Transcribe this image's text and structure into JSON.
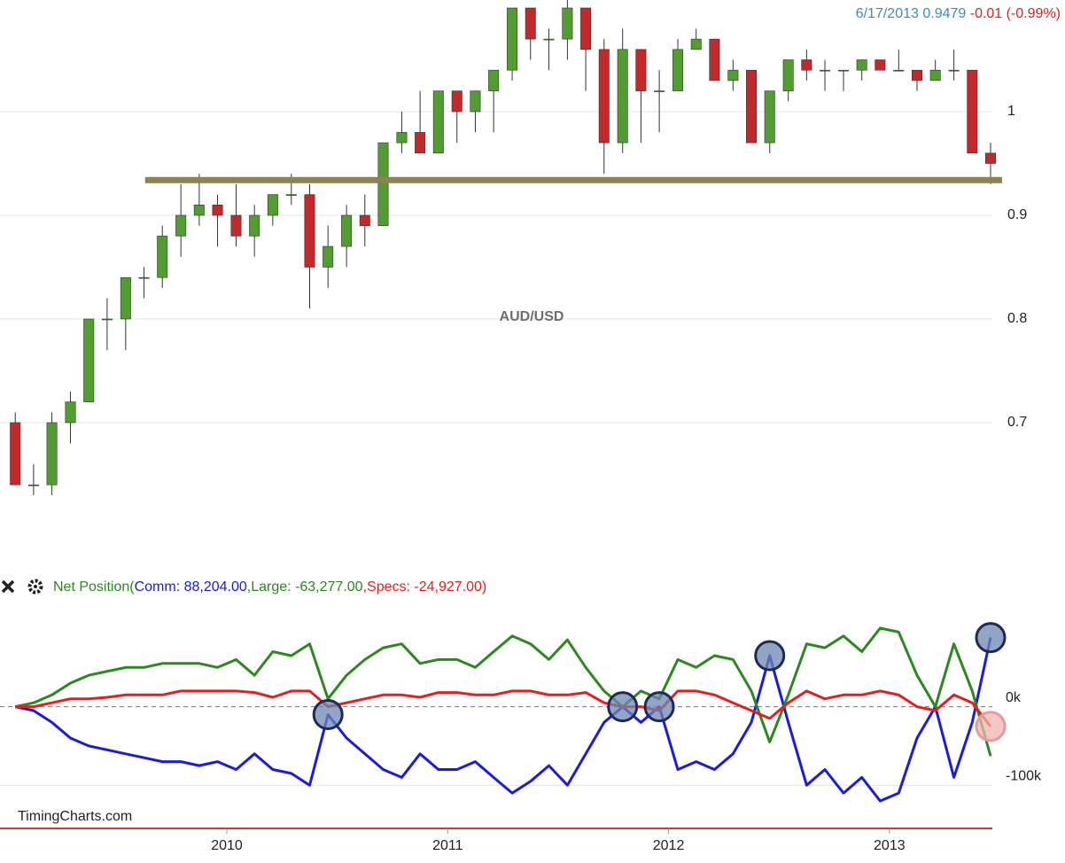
{
  "chart_data": [
    {
      "type": "candlestick",
      "title": "AUD/USD",
      "header_date": "6/17/2013",
      "header_price": "0.9479",
      "header_change": "-0.01 (-0.99%)",
      "x": [
        2009.042,
        2009.125,
        2009.208,
        2009.292,
        2009.375,
        2009.458,
        2009.542,
        2009.625,
        2009.708,
        2009.792,
        2009.875,
        2009.958,
        2010.042,
        2010.125,
        2010.208,
        2010.292,
        2010.375,
        2010.458,
        2010.542,
        2010.625,
        2010.708,
        2010.792,
        2010.875,
        2010.958,
        2011.042,
        2011.125,
        2011.208,
        2011.292,
        2011.375,
        2011.458,
        2011.542,
        2011.625,
        2011.708,
        2011.792,
        2011.875,
        2011.958,
        2012.042,
        2012.125,
        2012.208,
        2012.292,
        2012.375,
        2012.458,
        2012.542,
        2012.625,
        2012.708,
        2012.792,
        2012.875,
        2012.958,
        2013.042,
        2013.125,
        2013.208,
        2013.292,
        2013.375,
        2013.458
      ],
      "open": [
        0.7,
        0.64,
        0.64,
        0.7,
        0.72,
        0.8,
        0.8,
        0.84,
        0.84,
        0.88,
        0.9,
        0.91,
        0.9,
        0.88,
        0.9,
        0.92,
        0.92,
        0.85,
        0.87,
        0.9,
        0.89,
        0.97,
        0.98,
        0.96,
        1.02,
        1.0,
        1.02,
        1.04,
        1.1,
        1.07,
        1.07,
        1.1,
        1.06,
        0.97,
        1.06,
        1.02,
        1.02,
        1.06,
        1.07,
        1.03,
        1.04,
        0.97,
        1.02,
        1.05,
        1.04,
        1.04,
        1.04,
        1.05,
        1.04,
        1.04,
        1.03,
        1.04,
        1.04,
        0.96
      ],
      "high": [
        0.71,
        0.66,
        0.71,
        0.73,
        0.8,
        0.82,
        0.84,
        0.85,
        0.89,
        0.93,
        0.94,
        0.92,
        0.93,
        0.91,
        0.92,
        0.94,
        0.93,
        0.89,
        0.91,
        0.92,
        0.97,
        1.0,
        1.02,
        1.02,
        1.02,
        1.02,
        1.04,
        1.1,
        1.1,
        1.08,
        1.11,
        1.1,
        1.07,
        1.08,
        1.06,
        1.04,
        1.07,
        1.08,
        1.07,
        1.05,
        1.04,
        1.02,
        1.05,
        1.06,
        1.05,
        1.04,
        1.05,
        1.05,
        1.06,
        1.04,
        1.05,
        1.06,
        1.04,
        0.97
      ],
      "low": [
        0.64,
        0.63,
        0.63,
        0.68,
        0.72,
        0.77,
        0.77,
        0.82,
        0.83,
        0.86,
        0.89,
        0.87,
        0.87,
        0.86,
        0.89,
        0.91,
        0.81,
        0.83,
        0.85,
        0.87,
        0.89,
        0.96,
        0.96,
        0.96,
        0.97,
        0.98,
        0.98,
        1.03,
        1.05,
        1.04,
        1.05,
        1.02,
        0.94,
        0.96,
        0.97,
        0.98,
        1.02,
        1.06,
        1.03,
        1.02,
        0.97,
        0.96,
        1.01,
        1.03,
        1.02,
        1.02,
        1.03,
        1.04,
        1.04,
        1.02,
        1.03,
        1.03,
        0.96,
        0.93
      ],
      "close": [
        0.64,
        0.64,
        0.7,
        0.72,
        0.8,
        0.8,
        0.84,
        0.84,
        0.88,
        0.9,
        0.91,
        0.9,
        0.88,
        0.9,
        0.92,
        0.92,
        0.85,
        0.87,
        0.9,
        0.89,
        0.97,
        0.98,
        0.96,
        1.02,
        1.0,
        1.02,
        1.04,
        1.1,
        1.07,
        1.07,
        1.1,
        1.06,
        0.97,
        1.06,
        1.02,
        1.02,
        1.06,
        1.07,
        1.03,
        1.04,
        0.97,
        1.02,
        1.05,
        1.04,
        1.04,
        1.04,
        1.05,
        1.04,
        1.04,
        1.03,
        1.04,
        1.04,
        0.96,
        0.95
      ],
      "up_color": "#4f9e2f",
      "down_color": "#c3282b",
      "support": {
        "value": 0.934,
        "x": [
          2009.63,
          2013.51
        ],
        "color": "#8b8450"
      },
      "xlim": [
        2008.973,
        2013.466
      ],
      "ylim": [
        0.6,
        1.1
      ],
      "yticks": [
        0.7,
        0.8,
        0.9,
        1
      ],
      "grid": true
    },
    {
      "type": "line",
      "legend_prefix": "Net Position(",
      "legend_separator": ",",
      "legend_suffix": ")",
      "source": "TimingCharts.com",
      "x": [
        2009.042,
        2009.125,
        2009.208,
        2009.292,
        2009.375,
        2009.458,
        2009.542,
        2009.625,
        2009.708,
        2009.792,
        2009.875,
        2009.958,
        2010.042,
        2010.125,
        2010.208,
        2010.292,
        2010.375,
        2010.458,
        2010.542,
        2010.625,
        2010.708,
        2010.792,
        2010.875,
        2010.958,
        2011.042,
        2011.125,
        2011.208,
        2011.292,
        2011.375,
        2011.458,
        2011.542,
        2011.625,
        2011.708,
        2011.792,
        2011.875,
        2011.958,
        2012.042,
        2012.125,
        2012.208,
        2012.292,
        2012.375,
        2012.458,
        2012.542,
        2012.625,
        2012.708,
        2012.792,
        2012.875,
        2012.958,
        2013.042,
        2013.125,
        2013.208,
        2013.292,
        2013.375,
        2013.458
      ],
      "series": [
        {
          "name": "Comm: 88,204.00",
          "color": "#1a1ae6",
          "values": [
            0,
            -5,
            -20,
            -40,
            -50,
            -55,
            -60,
            -65,
            -70,
            -70,
            -75,
            -70,
            -80,
            -60,
            -80,
            -85,
            -100,
            -10,
            -40,
            -60,
            -80,
            -90,
            -60,
            -80,
            -80,
            -70,
            -90,
            -110,
            -95,
            -75,
            -100,
            -60,
            -20,
            0,
            -20,
            0,
            -80,
            -70,
            -80,
            -60,
            -20,
            65,
            -20,
            -100,
            -80,
            -110,
            -90,
            -120,
            -110,
            -40,
            0,
            -90,
            -20,
            88
          ]
        },
        {
          "name": "Large: -63,277.00",
          "color": "#2a8a1e",
          "values": [
            0,
            5,
            15,
            30,
            40,
            45,
            50,
            50,
            55,
            55,
            55,
            50,
            60,
            40,
            70,
            65,
            80,
            10,
            40,
            60,
            75,
            80,
            55,
            60,
            60,
            50,
            70,
            90,
            80,
            60,
            85,
            50,
            20,
            0,
            20,
            10,
            60,
            50,
            65,
            60,
            20,
            -45,
            15,
            80,
            75,
            90,
            70,
            100,
            95,
            40,
            0,
            80,
            20,
            -63
          ]
        },
        {
          "name": "Specs: -24,927.00",
          "color": "#e61e1e",
          "values": [
            0,
            0,
            5,
            10,
            10,
            12,
            15,
            15,
            15,
            20,
            20,
            20,
            20,
            18,
            12,
            20,
            20,
            0,
            5,
            10,
            15,
            15,
            12,
            18,
            18,
            15,
            15,
            20,
            20,
            15,
            15,
            18,
            5,
            0,
            0,
            -5,
            20,
            20,
            15,
            5,
            -5,
            -15,
            5,
            20,
            10,
            15,
            15,
            20,
            15,
            0,
            -5,
            15,
            5,
            -25
          ]
        }
      ],
      "xlim": [
        2008.973,
        2013.466
      ],
      "xticks": [
        2010,
        2011,
        2012,
        2013
      ],
      "ylim": [
        -155,
        127
      ],
      "yticks": [
        {
          "value": -100,
          "label": "-100k"
        },
        {
          "value": 0,
          "label": "0k"
        }
      ],
      "grid": true
    }
  ]
}
